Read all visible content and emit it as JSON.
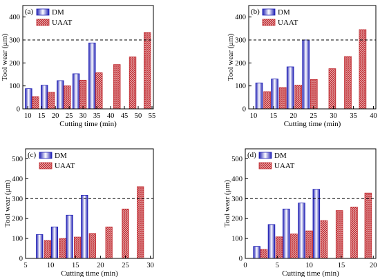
{
  "chart_data": [
    {
      "type": "bar",
      "panel_label": "(a)",
      "xlabel": "Cutting time (min)",
      "ylabel": "Tool wear (μm)",
      "xlim": [
        8.2,
        55.5
      ],
      "xticks": [
        10,
        15,
        20,
        25,
        30,
        35,
        40,
        45,
        50,
        55
      ],
      "ylim": [
        0,
        450
      ],
      "yticks": [
        0,
        100,
        200,
        300,
        400
      ],
      "reference_line": 300,
      "series": [
        {
          "name": "DM",
          "color": "#1f1fb4",
          "x": [
            10.3,
            16,
            21.8,
            27.5,
            33.3
          ],
          "values": [
            88,
            103,
            123,
            153,
            287
          ]
        },
        {
          "name": "UAAT",
          "color": "#c0282e",
          "x": [
            12.8,
            18.5,
            24.3,
            30,
            35.8,
            42.3,
            48,
            53.3
          ],
          "values": [
            53,
            72,
            100,
            125,
            157,
            193,
            226,
            332
          ]
        }
      ]
    },
    {
      "type": "bar",
      "panel_label": "(b)",
      "xlabel": "Cutting time (min)",
      "ylabel": "Tool wear (μm)",
      "xlim": [
        8.8,
        40.6
      ],
      "xticks": [
        10,
        15,
        20,
        25,
        30,
        35,
        40
      ],
      "ylim": [
        0,
        450
      ],
      "yticks": [
        0,
        100,
        200,
        300,
        400
      ],
      "reference_line": 300,
      "series": [
        {
          "name": "DM",
          "color": "#1f1fb4",
          "x": [
            11.4,
            15.3,
            19.2,
            23.1
          ],
          "values": [
            113,
            130,
            183,
            300
          ]
        },
        {
          "name": "UAAT",
          "color": "#c0282e",
          "x": [
            13.4,
            17.3,
            21.2,
            25.1,
            29.7,
            33.6,
            37.3
          ],
          "values": [
            75,
            93,
            103,
            128,
            175,
            228,
            345
          ]
        }
      ]
    },
    {
      "type": "bar",
      "panel_label": "(c)",
      "xlabel": "Cutting time (min)",
      "ylabel": "Tool wear (μm)",
      "xlim": [
        5,
        30.6
      ],
      "xticks": [
        5,
        10,
        15,
        20,
        25,
        30
      ],
      "ylim": [
        0,
        550
      ],
      "yticks": [
        0,
        100,
        200,
        300,
        400,
        500
      ],
      "reference_line": 300,
      "series": [
        {
          "name": "DM",
          "color": "#1f1fb4",
          "x": [
            7.8,
            10.8,
            13.8,
            16.8
          ],
          "values": [
            120,
            158,
            217,
            317
          ]
        },
        {
          "name": "UAAT",
          "color": "#c0282e",
          "x": [
            9.4,
            12.4,
            15.4,
            18.4,
            21.7,
            25,
            28
          ],
          "values": [
            90,
            100,
            107,
            125,
            158,
            248,
            360
          ]
        }
      ]
    },
    {
      "type": "bar",
      "panel_label": "(d)",
      "xlabel": "Cutting time (min)",
      "ylabel": "Tool wear (μm)",
      "xlim": [
        0,
        20.4
      ],
      "xticks": [
        0,
        5,
        10,
        15,
        20
      ],
      "ylim": [
        0,
        550
      ],
      "yticks": [
        0,
        100,
        200,
        300,
        400,
        500
      ],
      "reference_line": 300,
      "series": [
        {
          "name": "DM",
          "color": "#1f1fb4",
          "x": [
            1.8,
            4.1,
            6.4,
            8.8,
            11.1
          ],
          "values": [
            60,
            170,
            248,
            278,
            347
          ]
        },
        {
          "name": "UAAT",
          "color": "#c0282e",
          "x": [
            2.9,
            5.3,
            7.6,
            10,
            12.3,
            14.7,
            17,
            19.2
          ],
          "values": [
            45,
            108,
            123,
            138,
            190,
            240,
            258,
            328
          ]
        }
      ]
    }
  ]
}
